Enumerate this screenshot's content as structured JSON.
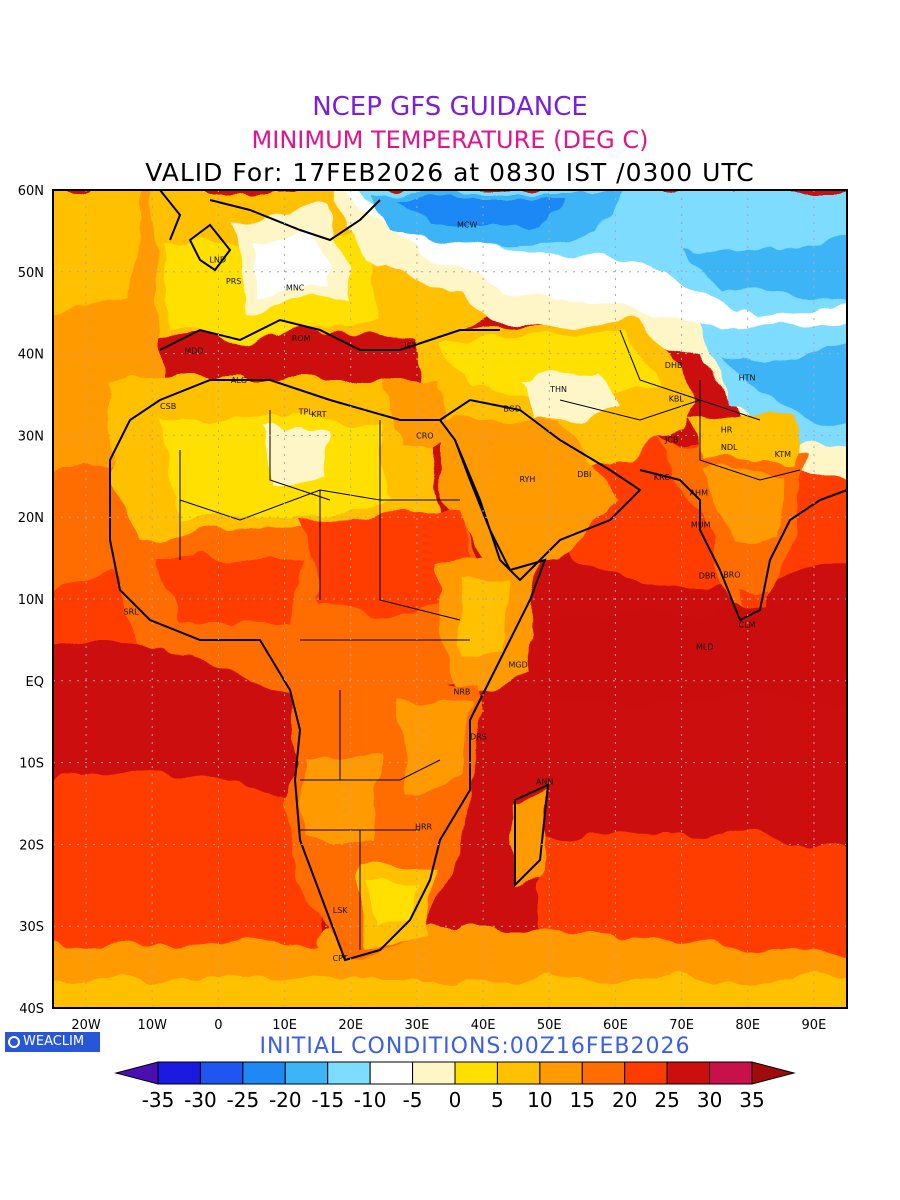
{
  "header": {
    "title_line1": "NCEP GFS GUIDANCE",
    "title_line2": "MINIMUM TEMPERATURE (DEG C)",
    "title_line3": "VALID For: 17FEB2026 at 0830 IST /0300 UTC"
  },
  "footer": {
    "logo_text": "WEACLIM",
    "initial_conditions": "INITIAL CONDITIONS:00Z16FEB2026"
  },
  "axes": {
    "lat_labels": [
      {
        "lat": 60,
        "text": "60N"
      },
      {
        "lat": 50,
        "text": "50N"
      },
      {
        "lat": 40,
        "text": "40N"
      },
      {
        "lat": 30,
        "text": "30N"
      },
      {
        "lat": 20,
        "text": "20N"
      },
      {
        "lat": 10,
        "text": "10N"
      },
      {
        "lat": 0,
        "text": "EQ"
      },
      {
        "lat": -10,
        "text": "10S"
      },
      {
        "lat": -20,
        "text": "20S"
      },
      {
        "lat": -30,
        "text": "30S"
      },
      {
        "lat": -40,
        "text": "40S"
      }
    ],
    "lon_labels": [
      {
        "lon": -20,
        "text": "20W"
      },
      {
        "lon": -10,
        "text": "10W"
      },
      {
        "lon": 0,
        "text": "0"
      },
      {
        "lon": 10,
        "text": "10E"
      },
      {
        "lon": 20,
        "text": "20E"
      },
      {
        "lon": 30,
        "text": "30E"
      },
      {
        "lon": 40,
        "text": "40E"
      },
      {
        "lon": 50,
        "text": "50E"
      },
      {
        "lon": 60,
        "text": "60E"
      },
      {
        "lon": 70,
        "text": "70E"
      },
      {
        "lon": 80,
        "text": "80E"
      },
      {
        "lon": 90,
        "text": "90E"
      }
    ],
    "lon_range": [
      -25,
      95
    ],
    "lat_range": [
      -40,
      60
    ]
  },
  "colorbar": {
    "labels": [
      "-35",
      "-30",
      "-25",
      "-20",
      "-15",
      "-10",
      "-5",
      "0",
      "5",
      "10",
      "15",
      "20",
      "25",
      "30",
      "35"
    ],
    "colors": [
      "#4a0fb0",
      "#1a1ae0",
      "#1f55f0",
      "#1e88f5",
      "#3cb4f5",
      "#7ddcff",
      "#ffffff",
      "#fff6c8",
      "#ffe000",
      "#ffc000",
      "#ff9a00",
      "#ff6c00",
      "#ff3c00",
      "#cc0e0e",
      "#c8104a",
      "#a00c0c"
    ]
  },
  "cities": [
    {
      "name": "MCW",
      "lon": 37.6,
      "lat": 55.8
    },
    {
      "name": "LND",
      "lon": -0.1,
      "lat": 51.5
    },
    {
      "name": "PRS",
      "lon": 2.3,
      "lat": 48.9
    },
    {
      "name": "MNC",
      "lon": 11.6,
      "lat": 48.1
    },
    {
      "name": "ROM",
      "lon": 12.5,
      "lat": 41.9
    },
    {
      "name": "MDD",
      "lon": -3.7,
      "lat": 40.4
    },
    {
      "name": "IST",
      "lon": 29.0,
      "lat": 41.0
    },
    {
      "name": "ALG",
      "lon": 3.1,
      "lat": 36.8
    },
    {
      "name": "CSB",
      "lon": -7.6,
      "lat": 33.6
    },
    {
      "name": "TPL",
      "lon": 13.2,
      "lat": 32.9
    },
    {
      "name": "KRT",
      "lon": 15.2,
      "lat": 32.6
    },
    {
      "name": "CRO",
      "lon": 31.2,
      "lat": 30.0
    },
    {
      "name": "BGD",
      "lon": 44.4,
      "lat": 33.3
    },
    {
      "name": "THN",
      "lon": 51.4,
      "lat": 35.7
    },
    {
      "name": "RYH",
      "lon": 46.7,
      "lat": 24.7
    },
    {
      "name": "DBI",
      "lon": 55.3,
      "lat": 25.3
    },
    {
      "name": "DHB",
      "lon": 68.8,
      "lat": 38.6
    },
    {
      "name": "KBL",
      "lon": 69.2,
      "lat": 34.5
    },
    {
      "name": "HTN",
      "lon": 79.9,
      "lat": 37.1
    },
    {
      "name": "JCB",
      "lon": 68.5,
      "lat": 29.5
    },
    {
      "name": "KRC",
      "lon": 67.0,
      "lat": 24.9
    },
    {
      "name": "AHM",
      "lon": 72.6,
      "lat": 23.0
    },
    {
      "name": "HR",
      "lon": 76.8,
      "lat": 30.7
    },
    {
      "name": "NDL",
      "lon": 77.2,
      "lat": 28.6
    },
    {
      "name": "KTM",
      "lon": 85.3,
      "lat": 27.7
    },
    {
      "name": "MUM",
      "lon": 72.9,
      "lat": 19.1
    },
    {
      "name": "DBR",
      "lon": 73.9,
      "lat": 12.9
    },
    {
      "name": "BRO",
      "lon": 77.6,
      "lat": 13.0
    },
    {
      "name": "CLM",
      "lon": 79.9,
      "lat": 6.9
    },
    {
      "name": "MLD",
      "lon": 73.5,
      "lat": 4.2
    },
    {
      "name": "SRL",
      "lon": -13.2,
      "lat": 8.5
    },
    {
      "name": "MGD",
      "lon": 45.3,
      "lat": 2.0
    },
    {
      "name": "NRB",
      "lon": 36.8,
      "lat": -1.3
    },
    {
      "name": "DRS",
      "lon": 39.3,
      "lat": -6.8
    },
    {
      "name": "ANN",
      "lon": 49.3,
      "lat": -12.3
    },
    {
      "name": "HRR",
      "lon": 31.0,
      "lat": -17.8
    },
    {
      "name": "LSK",
      "lon": 18.4,
      "lat": -28.0
    },
    {
      "name": "CPT",
      "lon": 18.4,
      "lat": -33.9
    }
  ]
}
